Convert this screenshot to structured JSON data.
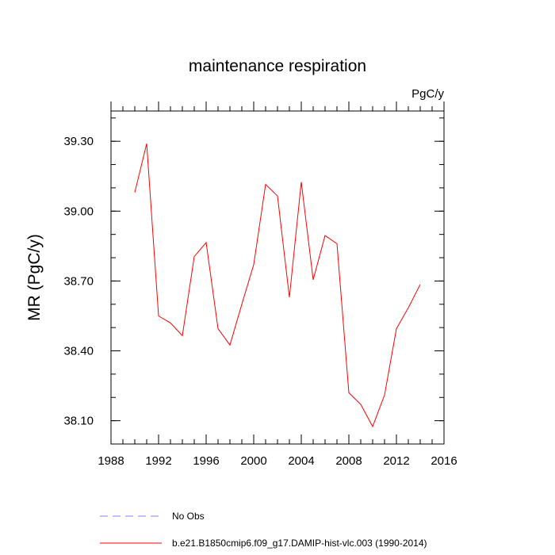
{
  "chart_data": {
    "type": "line",
    "title": "maintenance respiration",
    "units_label": "PgC/y",
    "xlabel": "",
    "ylabel": "MR  (PgC/y)",
    "xlim": [
      1988,
      2016
    ],
    "ylim": [
      38.0,
      39.43
    ],
    "x_ticks": [
      1988,
      1992,
      1996,
      2000,
      2004,
      2008,
      2012,
      2016
    ],
    "y_ticks": [
      "38.10",
      "38.40",
      "38.70",
      "39.00",
      "39.30"
    ],
    "grid": false,
    "legend_position": "bottom",
    "series": [
      {
        "name": "b.e21.B1850cmip6.f09_g17.DAMIP-hist-vlc.003 (1990-2014)",
        "color": "#ff0000",
        "style": "solid",
        "x": [
          1990,
          1991,
          1992,
          1993,
          1994,
          1995,
          1996,
          1997,
          1998,
          1999,
          2000,
          2001,
          2002,
          2003,
          2004,
          2005,
          2006,
          2007,
          2008,
          2009,
          2010,
          2011,
          2012,
          2013,
          2014
        ],
        "values": [
          39.08,
          39.29,
          38.55,
          38.52,
          38.465,
          38.805,
          38.865,
          38.495,
          38.425,
          38.6,
          38.77,
          39.115,
          39.065,
          38.63,
          39.125,
          38.705,
          38.895,
          38.86,
          38.22,
          38.17,
          38.075,
          38.21,
          38.495,
          38.585,
          38.685
        ]
      }
    ],
    "legend": [
      {
        "label": "No Obs",
        "color": "#8080ff",
        "style": "dashed"
      },
      {
        "label": "b.e21.B1850cmip6.f09_g17.DAMIP-hist-vlc.003 (1990-2014)",
        "color": "#ff0000",
        "style": "solid"
      }
    ]
  }
}
